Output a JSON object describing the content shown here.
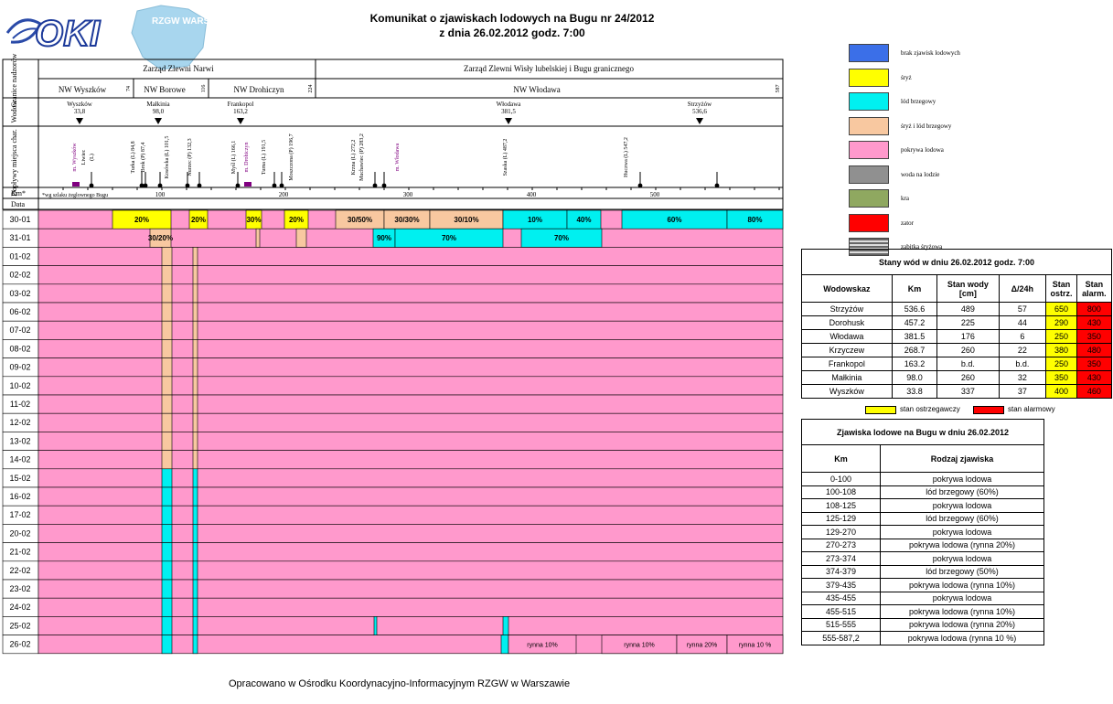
{
  "header": {
    "title_line1": "Komunikat o zjawiskach lodowych na Bugu nr 24/2012",
    "title_line2": "z dnia 26.02.2012 godz. 7:00",
    "logo1_text": "OKI",
    "logo2_text": "RZGW WARSZAWA"
  },
  "side_labels": {
    "granice": "Granice nadzorów",
    "wodow": "Wodow",
    "doplywy": "Dopływy miejsca char.",
    "km": "Km*",
    "data": "Data"
  },
  "zarzady": [
    "Zarząd Zlewni Narwi",
    "Zarząd Zlewni Wisły lubelskiej i Bugu granicznego"
  ],
  "nadzory": [
    {
      "name": "NW Wyszków",
      "km": "74"
    },
    {
      "name": "NW Borowe",
      "km": "116"
    },
    {
      "name": "NW Drohiczyn",
      "km": "224"
    },
    {
      "name": "NW Włodawa",
      "km": "587"
    }
  ],
  "wodowskazy": [
    {
      "name": "Wyszków",
      "km": "33,8"
    },
    {
      "name": "Małkinia",
      "km": "98,0"
    },
    {
      "name": "Frankopol",
      "km": "163,2"
    },
    {
      "name": "Włodawa",
      "km": "381,5"
    },
    {
      "name": "Strzyżów",
      "km": "536,6"
    }
  ],
  "doplywy": [
    "m. Wyszków",
    "Liwiec",
    "(L)",
    "Turka (L) 84,8",
    "Brok (P) 87,4",
    "Kosówka (L) 101,5",
    "Nurzec (P) 132,3",
    "Myśl (L) 166,1",
    "m. Drohiczyn",
    "Turna (L) 191,5",
    "Moszczona (P) 196,7",
    "Krzna (L) 272,2",
    "Muchawiec (P) 283,2",
    "m. Włodawa",
    "Szaska (L) 487,2",
    "Huczwa (L) 547,2"
  ],
  "km_axis": {
    "note": "*wg szlaku żeglownego Bugu",
    "ticks": [
      "100",
      "200",
      "300",
      "400",
      "500"
    ]
  },
  "dates": [
    "30-01",
    "31-01",
    "01-02",
    "02-02",
    "03-02",
    "06-02",
    "07-02",
    "08-02",
    "09-02",
    "10-02",
    "11-02",
    "12-02",
    "13-02",
    "14-02",
    "15-02",
    "16-02",
    "17-02",
    "20-02",
    "21-02",
    "22-02",
    "23-02",
    "24-02",
    "25-02",
    "26-02"
  ],
  "row_labels": {
    "r30_a": "20%",
    "r30_b": "20%",
    "r30_c": "30%",
    "r30_d": "20%",
    "r30_e": "30/50%",
    "r30_f": "30/30%",
    "r30_g": "30/10%",
    "r30_h": "10%",
    "r30_i": "40%",
    "r30_j": "60%",
    "r30_k": "80%",
    "r31_a": "30/20%",
    "r31_b": "90%",
    "r31_c": "70%",
    "r31_d": "70%",
    "r26_a": "rynna 10%",
    "r26_b": "rynna 10%",
    "r26_c": "rynna 20%",
    "r26_d": "rynna 10 %"
  },
  "legend": [
    {
      "label": "brak zjawisk lodowych",
      "color": "#3b6fe8"
    },
    {
      "label": "śryż",
      "color": "#ffff00"
    },
    {
      "label": "lód brzegowy",
      "color": "#00f0f0"
    },
    {
      "label": "śryż i lód brzegowy",
      "color": "#f8c8a0"
    },
    {
      "label": "pokrywa lodowa",
      "color": "#ff99cc"
    },
    {
      "label": "woda na lodzie",
      "color": "#909090"
    },
    {
      "label": "kra",
      "color": "#8fa860"
    },
    {
      "label": "zator",
      "color": "#ff0000"
    },
    {
      "label": "zabitka śryżowa",
      "color": "#b0b0b0"
    }
  ],
  "stany": {
    "title": "Stany wód w dniu 26.02.2012 godz. 7:00",
    "headers": [
      "Wodowskaz",
      "Km",
      "Stan wody [cm]",
      "Δ/24h",
      "Stan ostrz.",
      "Stan alarm."
    ],
    "rows": [
      [
        "Strzyżów",
        "536.6",
        "489",
        "57",
        "650",
        "800"
      ],
      [
        "Dorohusk",
        "457.2",
        "225",
        "44",
        "290",
        "430"
      ],
      [
        "Włodawa",
        "381.5",
        "176",
        "6",
        "250",
        "350"
      ],
      [
        "Krzyczew",
        "268.7",
        "260",
        "22",
        "380",
        "480"
      ],
      [
        "Frankopol",
        "163.2",
        "b.d.",
        "b.d.",
        "250",
        "350"
      ],
      [
        "Małkinia",
        "98.0",
        "260",
        "32",
        "350",
        "430"
      ],
      [
        "Wyszków",
        "33.8",
        "337",
        "37",
        "400",
        "460"
      ]
    ],
    "legend_warn": "stan ostrzegawczy",
    "legend_alarm": "stan alarmowy"
  },
  "zjawiska": {
    "title": "Zjawiska lodowe na Bugu w dniu 26.02.2012",
    "headers": [
      "Km",
      "Rodzaj zjawiska"
    ],
    "rows": [
      [
        "0-100",
        "pokrywa lodowa"
      ],
      [
        "100-108",
        "lód brzegowy (60%)"
      ],
      [
        "108-125",
        "pokrywa lodowa"
      ],
      [
        "125-129",
        "lód brzegowy (60%)"
      ],
      [
        "129-270",
        "pokrywa lodowa"
      ],
      [
        "270-273",
        "pokrywa lodowa (rynna 20%)"
      ],
      [
        "273-374",
        "pokrywa lodowa"
      ],
      [
        "374-379",
        "lód brzegowy (50%)"
      ],
      [
        "379-435",
        "pokrywa lodowa (rynna 10%)"
      ],
      [
        "435-455",
        "pokrywa lodowa"
      ],
      [
        "455-515",
        "pokrywa lodowa (rynna 10%)"
      ],
      [
        "515-555",
        "pokrywa lodowa (rynna 20%)"
      ],
      [
        "555-587,2",
        "pokrywa lodowa (rynna 10 %)"
      ]
    ]
  },
  "footer": "Opracowano w Ośrodku Koordynacyjno-Informacyjnym RZGW w Warszawie",
  "colors": {
    "pink": "#ff99cc",
    "yellow": "#ffff00",
    "cyan": "#00f0f0",
    "peach": "#f8c8a0",
    "red": "#ff0000"
  }
}
